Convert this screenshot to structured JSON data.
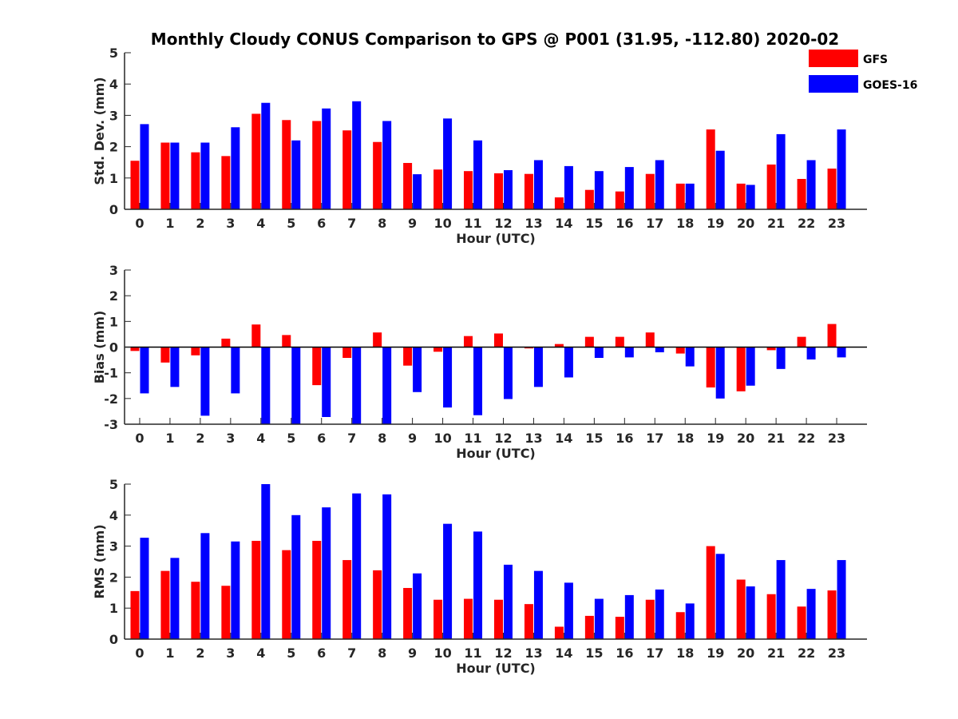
{
  "chart_data": {
    "title": "Monthly Cloudy CONUS Comparison to GPS @ P001 (31.95, -112.80) 2020-02",
    "legend": [
      {
        "name": "GFS",
        "color": "#ff0000"
      },
      {
        "name": "GOES-16",
        "color": "#0000ff"
      }
    ],
    "legend_position": "top-right",
    "panels": [
      {
        "type": "bar",
        "ylabel": "Std. Dev. (mm)",
        "xlabel": "Hour (UTC)",
        "ylim": [
          0,
          5
        ],
        "yticks": [
          "0",
          "1",
          "2",
          "3",
          "4",
          "5"
        ],
        "categories": [
          "0",
          "1",
          "2",
          "3",
          "4",
          "5",
          "6",
          "7",
          "8",
          "9",
          "10",
          "11",
          "12",
          "13",
          "14",
          "15",
          "16",
          "17",
          "18",
          "19",
          "20",
          "21",
          "22",
          "23"
        ],
        "series": [
          {
            "name": "GFS",
            "color": "#ff0000",
            "values": [
              1.55,
              2.13,
              1.82,
              1.7,
              3.05,
              2.85,
              2.82,
              2.52,
              2.15,
              1.48,
              1.27,
              1.22,
              1.15,
              1.13,
              0.38,
              0.62,
              0.57,
              1.13,
              0.82,
              2.55,
              0.82,
              1.43,
              0.97,
              1.3
            ]
          },
          {
            "name": "GOES-16",
            "color": "#0000ff",
            "values": [
              2.72,
              2.13,
              2.13,
              2.62,
              3.4,
              2.2,
              3.22,
              3.45,
              2.82,
              1.12,
              2.9,
              2.2,
              1.25,
              1.57,
              1.38,
              1.22,
              1.35,
              1.57,
              0.82,
              1.87,
              0.78,
              2.4,
              1.57,
              2.55
            ]
          }
        ]
      },
      {
        "type": "bar",
        "ylabel": "Bias (mm)",
        "xlabel": "Hour (UTC)",
        "ylim": [
          -3,
          3
        ],
        "yticks": [
          "-3",
          "-2",
          "-1",
          "0",
          "1",
          "2",
          "3"
        ],
        "categories": [
          "0",
          "1",
          "2",
          "3",
          "4",
          "5",
          "6",
          "7",
          "8",
          "9",
          "10",
          "11",
          "12",
          "13",
          "14",
          "15",
          "16",
          "17",
          "18",
          "19",
          "20",
          "21",
          "22",
          "23"
        ],
        "series": [
          {
            "name": "GFS",
            "color": "#ff0000",
            "values": [
              -0.15,
              -0.6,
              -0.32,
              0.33,
              0.88,
              0.47,
              -1.48,
              -0.42,
              0.57,
              -0.72,
              -0.18,
              0.43,
              0.53,
              -0.05,
              0.12,
              0.4,
              0.4,
              0.57,
              -0.25,
              -1.57,
              -1.72,
              -0.12,
              0.4,
              0.9
            ]
          },
          {
            "name": "GOES-16",
            "color": "#0000ff",
            "values": [
              -1.8,
              -1.55,
              -2.67,
              -1.8,
              -3.0,
              -3.0,
              -2.72,
              -3.0,
              -3.0,
              -1.75,
              -2.35,
              -2.65,
              -2.02,
              -1.55,
              -1.18,
              -0.42,
              -0.4,
              -0.2,
              -0.75,
              -2.0,
              -1.5,
              -0.85,
              -0.48,
              -0.4
            ]
          }
        ]
      },
      {
        "type": "bar",
        "ylabel": "RMS (mm)",
        "xlabel": "Hour (UTC)",
        "ylim": [
          0,
          5
        ],
        "yticks": [
          "0",
          "1",
          "2",
          "3",
          "4",
          "5"
        ],
        "categories": [
          "0",
          "1",
          "2",
          "3",
          "4",
          "5",
          "6",
          "7",
          "8",
          "9",
          "10",
          "11",
          "12",
          "13",
          "14",
          "15",
          "16",
          "17",
          "18",
          "19",
          "20",
          "21",
          "22",
          "23"
        ],
        "series": [
          {
            "name": "GFS",
            "color": "#ff0000",
            "values": [
              1.55,
              2.2,
              1.85,
              1.72,
              3.17,
              2.87,
              3.17,
              2.55,
              2.22,
              1.65,
              1.27,
              1.3,
              1.27,
              1.13,
              0.4,
              0.75,
              0.72,
              1.27,
              0.87,
              3.0,
              1.92,
              1.45,
              1.05,
              1.57
            ]
          },
          {
            "name": "GOES-16",
            "color": "#0000ff",
            "values": [
              3.27,
              2.62,
              3.42,
              3.15,
              5.0,
              4.0,
              4.25,
              4.7,
              4.67,
              2.12,
              3.72,
              3.47,
              2.4,
              2.2,
              1.82,
              1.3,
              1.42,
              1.6,
              1.15,
              2.75,
              1.7,
              2.55,
              1.62,
              2.55
            ]
          }
        ]
      }
    ]
  }
}
